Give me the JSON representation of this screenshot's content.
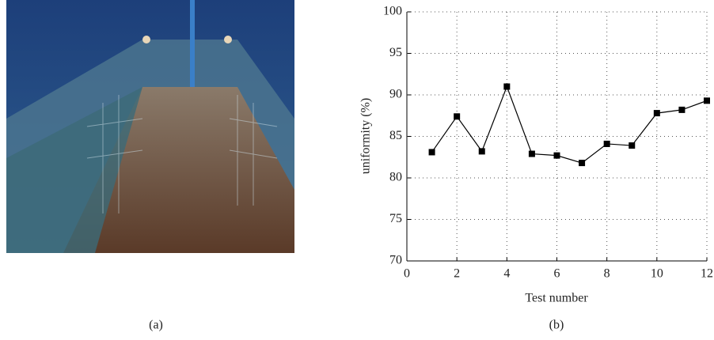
{
  "chart_data": {
    "type": "line",
    "x_label": "Test number",
    "y_label": "uniformity (%)",
    "x": [
      1,
      2,
      3,
      4,
      5,
      6,
      7,
      8,
      9,
      10,
      11,
      12
    ],
    "series": [
      {
        "color": "#000000",
        "marker": "square",
        "values": [
          83.1,
          87.4,
          83.2,
          91.0,
          82.9,
          82.7,
          81.8,
          84.1,
          83.9,
          87.8,
          88.2,
          89.3
        ]
      }
    ],
    "xlim": [
      0,
      12
    ],
    "xticks": [
      0,
      2,
      4,
      6,
      8,
      10,
      12
    ],
    "ylim": [
      70,
      100
    ],
    "yticks": [
      70,
      75,
      80,
      85,
      90,
      95,
      100
    ],
    "grid": true
  },
  "panels": [
    {
      "label": "(a)"
    },
    {
      "label": "(b)"
    }
  ]
}
